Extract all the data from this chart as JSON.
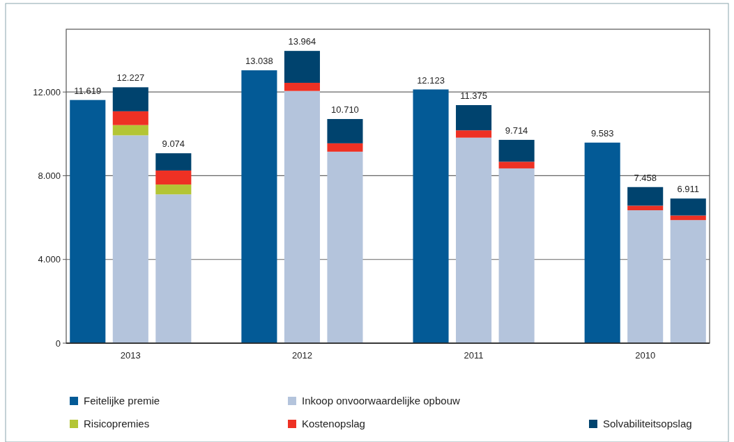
{
  "chart_data": {
    "type": "bar",
    "stacked": true,
    "categories": [
      null,
      "2013",
      null,
      null,
      null,
      "2012",
      null,
      null,
      null,
      "2011",
      null,
      null,
      null,
      "2010",
      null
    ],
    "series": [
      {
        "name": "Feitelijke premie",
        "color": "#035a96",
        "values": [
          11619,
          null,
          null,
          null,
          13038,
          null,
          null,
          null,
          12123,
          null,
          null,
          null,
          9583,
          null,
          null
        ]
      },
      {
        "name": "Inkoop onvoorwaardelijke opbouw",
        "color": "#b4c4dc",
        "values": [
          null,
          9930,
          7110,
          null,
          null,
          12050,
          9150,
          null,
          null,
          9820,
          8350,
          null,
          null,
          6350,
          5880
        ]
      },
      {
        "name": "Risicopremies",
        "color": "#b3c535",
        "values": [
          null,
          490,
          470,
          null,
          null,
          null,
          null,
          null,
          null,
          null,
          null,
          null,
          null,
          null,
          null
        ]
      },
      {
        "name": "Kostenopslag",
        "color": "#ee3124",
        "values": [
          null,
          660,
          670,
          null,
          null,
          390,
          400,
          null,
          null,
          350,
          320,
          null,
          null,
          220,
          220
        ]
      },
      {
        "name": "Solvabiliteitsopslag",
        "color": "#00436e",
        "values": [
          null,
          1147,
          824,
          null,
          null,
          1524,
          1160,
          null,
          null,
          1205,
          1044,
          null,
          null,
          888,
          811
        ]
      }
    ],
    "totals": [
      "11.619",
      "12.227",
      "9.074",
      null,
      "13.038",
      "13.964",
      "10.710",
      null,
      "12.123",
      "11.375",
      "9.714",
      null,
      "9.583",
      "7.458",
      "6.911"
    ],
    "ylim": [
      0,
      15000
    ],
    "yticks": [
      0,
      {
        "value": 4000,
        "label": "4.000"
      },
      {
        "value": 8000,
        "label": "8.000"
      },
      {
        "value": 12000,
        "label": "12.000"
      }
    ],
    "grid": "y",
    "legend": "bottom"
  }
}
